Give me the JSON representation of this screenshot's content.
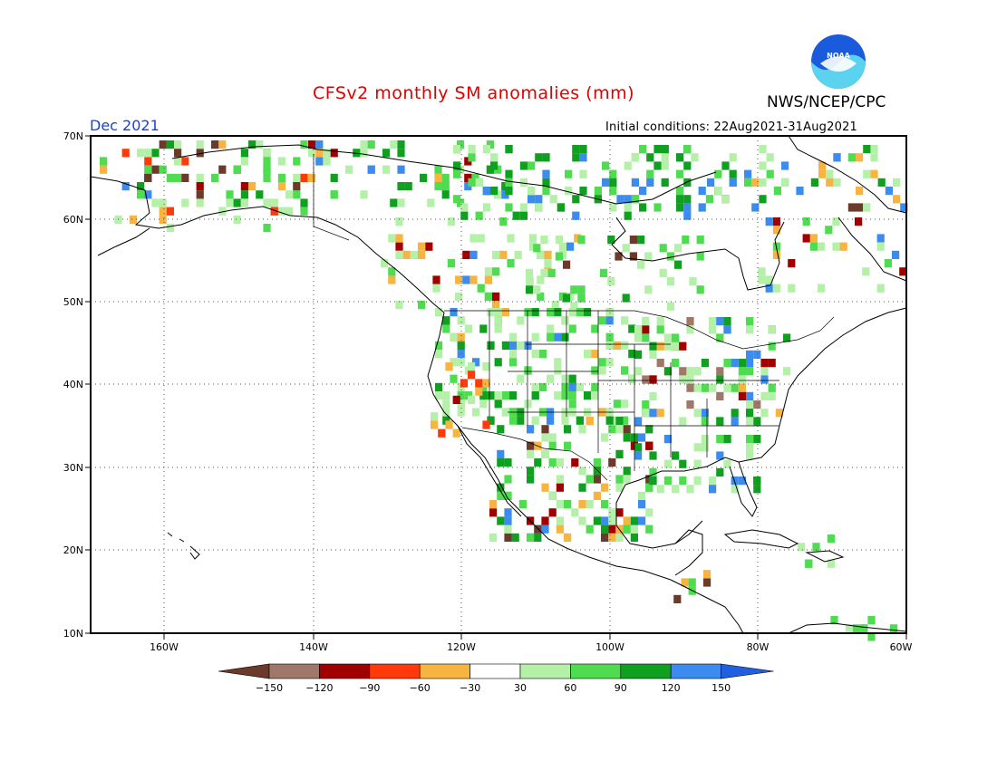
{
  "header": {
    "title": "CFSv2 monthly SM anomalies (mm)",
    "agency": "NWS/NCEP/CPC",
    "valid_month": "Dec 2021",
    "initial_conditions": "Initial conditions: 22Aug2021-31Aug2021",
    "logo_text": "NOAA"
  },
  "axes": {
    "lat_labels": [
      "70N",
      "60N",
      "50N",
      "40N",
      "30N",
      "20N",
      "10N"
    ],
    "lon_labels": [
      "160W",
      "140W",
      "120W",
      "100W",
      "80W",
      "60W"
    ]
  },
  "legend": {
    "labels": [
      "−150",
      "−120",
      "−90",
      "−60",
      "−30",
      "30",
      "60",
      "90",
      "120",
      "150"
    ],
    "colors": [
      "#6b3a2a",
      "#a0786a",
      "#a00000",
      "#ff3a0a",
      "#f8b440",
      "#ffffff",
      "#b4f0a8",
      "#50dc50",
      "#10a020",
      "#3c8cf0",
      "#2060e0"
    ]
  }
}
